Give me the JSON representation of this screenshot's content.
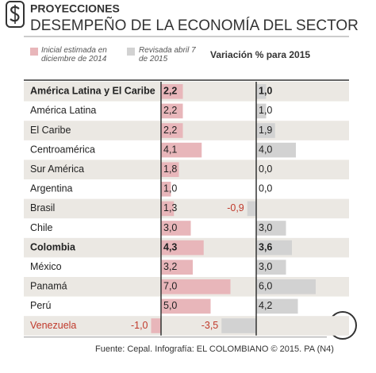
{
  "chart_data": {
    "type": "bar",
    "title": "PROYECCIONES",
    "subtitle": "DESEMPEÑO DE LA ECONOMÍA DEL SECTOR",
    "header": "Variación % para 2015",
    "categories": [
      "América Latina y El Caribe",
      "América Latina",
      "El Caribe",
      "Centroamérica",
      "Sur América",
      "Argentina",
      "Brasil",
      "Chile",
      "Colombia",
      "México",
      "Panamá",
      "Perú",
      "Venezuela"
    ],
    "bold_rows": [
      0,
      8
    ],
    "series": [
      {
        "name": "Inicial estimada en diciembre de 2014",
        "color": "#e8b6ba",
        "values": [
          2.2,
          2.2,
          2.2,
          4.1,
          1.8,
          1.0,
          1.3,
          3.0,
          4.3,
          3.2,
          7.0,
          5.0,
          -1.0
        ],
        "value_labels": [
          "2,2",
          "2,2",
          "2,2",
          "4,1",
          "1,8",
          "1,0",
          "1,3",
          "3,0",
          "4,3",
          "3,2",
          "7,0",
          "5,0",
          "-1,0"
        ]
      },
      {
        "name": "Revisada abril 7 de 2015",
        "color": "#d2d2d2",
        "values": [
          1.0,
          1.0,
          1.9,
          4.0,
          0.0,
          0.0,
          -0.9,
          3.0,
          3.6,
          3.0,
          6.0,
          4.2,
          -3.5
        ],
        "value_labels": [
          "1,0",
          "1,0",
          "1,9",
          "4,0",
          "0,0",
          "0,0",
          "-0,9",
          "3,0",
          "3,6",
          "3,0",
          "6,0",
          "4,2",
          "-3,5"
        ]
      }
    ],
    "source": "Fuente: Cepal. Infografía: EL COLOMBIANO © 2015. PA (N4)",
    "logo": "C."
  }
}
